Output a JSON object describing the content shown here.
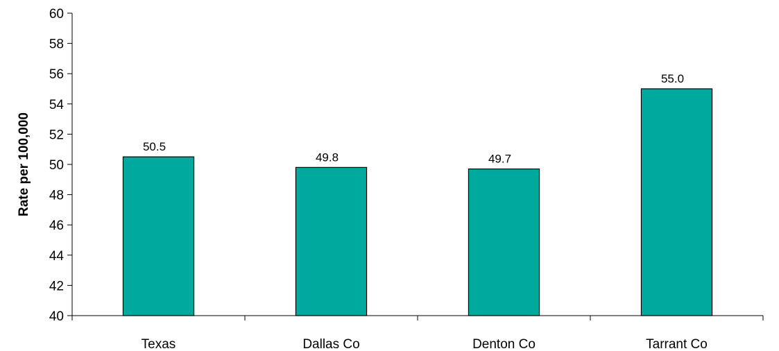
{
  "chart_data": {
    "type": "bar",
    "categories": [
      "Texas",
      "Dallas Co",
      "Denton Co",
      "Tarrant Co"
    ],
    "values": [
      50.5,
      49.8,
      49.7,
      55.0
    ],
    "data_labels": [
      "50.5",
      "49.8",
      "49.7",
      "55.0"
    ],
    "title": "",
    "xlabel": "",
    "ylabel": "Rate per 100,000",
    "ylim": [
      40,
      60
    ],
    "yticks": [
      40,
      42,
      44,
      46,
      48,
      50,
      52,
      54,
      56,
      58,
      60
    ],
    "grid": false,
    "legend": "none",
    "bar_color": "#00A99D"
  }
}
